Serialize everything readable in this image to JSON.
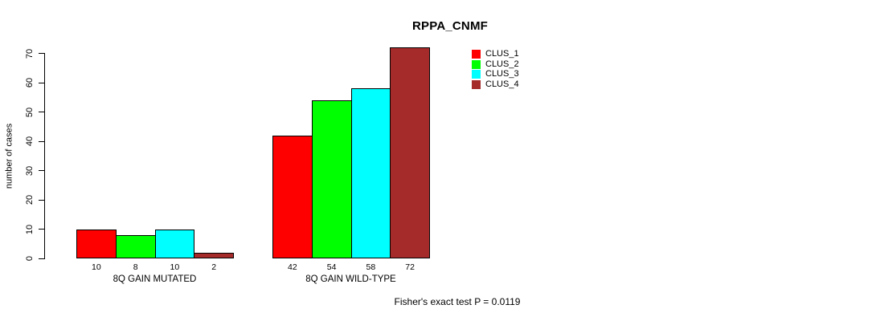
{
  "chart_data": {
    "type": "bar",
    "title": "RPPA_CNMF",
    "ylabel": "number of cases",
    "xlabel": "",
    "annotation": "Fisher's exact test P = 0.0119",
    "categories": [
      "8Q GAIN MUTATED",
      "8Q GAIN WILD-TYPE"
    ],
    "series": [
      {
        "name": "CLUS_1",
        "color": "#FF0000",
        "values": [
          10,
          42
        ]
      },
      {
        "name": "CLUS_2",
        "color": "#00FF00",
        "values": [
          8,
          54
        ]
      },
      {
        "name": "CLUS_3",
        "color": "#00FFFF",
        "values": [
          10,
          58
        ]
      },
      {
        "name": "CLUS_4",
        "color": "#A52A2A",
        "values": [
          2,
          72
        ]
      }
    ],
    "y_ticks": [
      0,
      10,
      20,
      30,
      40,
      50,
      60,
      70
    ],
    "ylim": [
      0,
      70
    ],
    "bar_value_labels": true,
    "legend_position": "inside-top-right",
    "grid": false,
    "background": "#ffffff",
    "axis_color": "#000000"
  }
}
